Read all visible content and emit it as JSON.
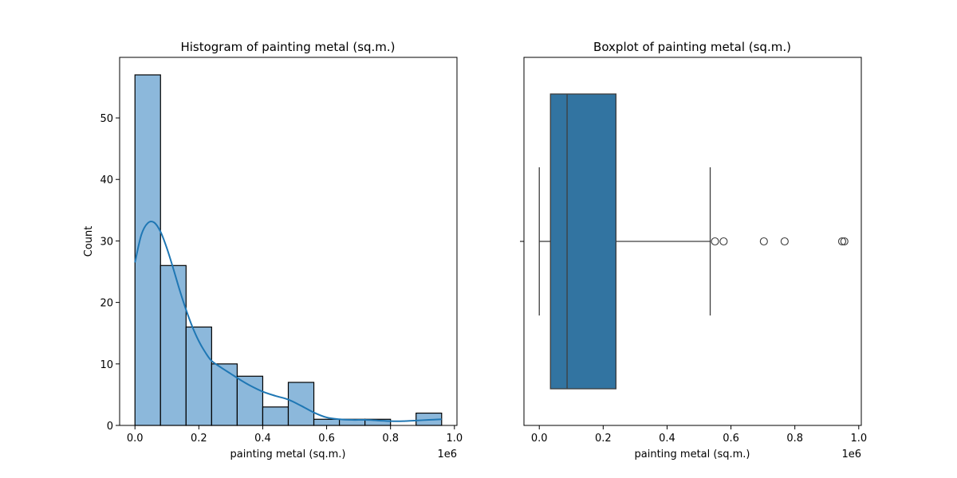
{
  "chart_data": [
    {
      "type": "bar",
      "title": "Histogram of painting metal (sq.m.)",
      "xlabel": "painting metal (sq.m.)",
      "ylabel": "Count",
      "x_offset_label": "1e6",
      "xlim": [
        -0.048,
        1.008
      ],
      "ylim": [
        0,
        59.85
      ],
      "x_ticks": [
        0.0,
        0.2,
        0.4,
        0.6,
        0.8,
        1.0
      ],
      "x_tick_labels": [
        "0.0",
        "0.2",
        "0.4",
        "0.6",
        "0.8",
        "1.0"
      ],
      "y_ticks": [
        0,
        10,
        20,
        30,
        40,
        50
      ],
      "y_tick_labels": [
        "0",
        "10",
        "20",
        "30",
        "40",
        "50"
      ],
      "bin_edges": [
        0.0,
        0.08,
        0.16,
        0.24,
        0.32,
        0.4,
        0.48,
        0.56,
        0.64,
        0.72,
        0.8,
        0.88,
        0.96
      ],
      "counts": [
        57,
        26,
        16,
        10,
        8,
        3,
        7,
        1,
        1,
        1,
        0,
        2
      ],
      "bar_color": "#8cb8db",
      "kde": {
        "color": "#1f77b4",
        "x": [
          0.0,
          0.02,
          0.04,
          0.06,
          0.08,
          0.1,
          0.12,
          0.14,
          0.16,
          0.18,
          0.2,
          0.22,
          0.24,
          0.27,
          0.3,
          0.33,
          0.36,
          0.4,
          0.44,
          0.48,
          0.52,
          0.56,
          0.6,
          0.64,
          0.68,
          0.72,
          0.76,
          0.8,
          0.84,
          0.88,
          0.92,
          0.96
        ],
        "y": [
          26.5,
          31.0,
          32.9,
          33.0,
          31.5,
          28.8,
          25.5,
          22.0,
          18.8,
          16.0,
          13.7,
          11.9,
          10.5,
          9.4,
          8.4,
          7.4,
          6.5,
          5.5,
          4.8,
          4.2,
          3.2,
          2.1,
          1.3,
          1.0,
          0.9,
          0.9,
          0.8,
          0.7,
          0.7,
          0.8,
          0.9,
          1.0
        ]
      }
    },
    {
      "type": "box",
      "title": "Boxplot of painting metal (sq.m.)",
      "xlabel": "painting metal (sq.m.)",
      "x_offset_label": "1e6",
      "xlim": [
        -0.048,
        1.008
      ],
      "x_ticks": [
        0.0,
        0.2,
        0.4,
        0.6,
        0.8,
        1.0
      ],
      "x_tick_labels": [
        "0.0",
        "0.2",
        "0.4",
        "0.6",
        "0.8",
        "1.0"
      ],
      "box_color": "#3274a1",
      "whisker_low": 0.0,
      "q1": 0.035,
      "median": 0.087,
      "q3": 0.24,
      "whisker_high": 0.535,
      "outliers": [
        0.55,
        0.577,
        0.703,
        0.768,
        0.948,
        0.955
      ]
    }
  ]
}
